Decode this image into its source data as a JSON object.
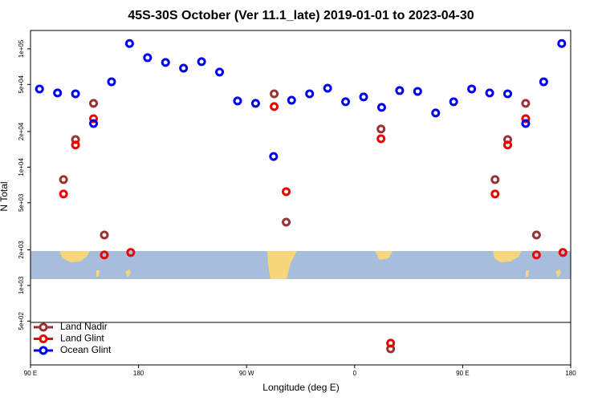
{
  "chart_data": {
    "type": "scatter",
    "title": "45S-30S October (Ver 11.1_late)   2019-01-01 to 2023-04-30",
    "x_label": "Longitude (deg E)",
    "y_label": "N Total",
    "log_y": true,
    "legend": "bottom-left",
    "xlim": [
      90,
      540
    ],
    "ylim": [
      213,
      143000
    ],
    "xticks": [
      {
        "value": 90,
        "label": "90 E"
      },
      {
        "value": 180,
        "label": "180"
      },
      {
        "value": 270,
        "label": "90 W"
      },
      {
        "value": 360,
        "label": "0"
      },
      {
        "value": 450,
        "label": "90 E"
      },
      {
        "value": 540,
        "label": "180"
      }
    ],
    "yticks": [
      {
        "value": 500,
        "label": "5e+02"
      },
      {
        "value": 1000,
        "label": "1e+03"
      },
      {
        "value": 2000,
        "label": "2e+03"
      },
      {
        "value": 5000,
        "label": "5e+03"
      },
      {
        "value": 10000,
        "label": "1e+04"
      },
      {
        "value": 20000,
        "label": "2e+04"
      },
      {
        "value": 50000,
        "label": "5e+04"
      },
      {
        "value": 100000,
        "label": "1e+05"
      }
    ],
    "series": [
      {
        "name": "Land Nadir",
        "color": "#993333",
        "x": [
          117.5,
          127.5,
          142.5,
          151.5,
          293,
          303,
          382,
          390,
          477,
          487.5,
          502.5,
          511.5
        ],
        "values": [
          7850,
          17100,
          34600,
          2670,
          41700,
          3430,
          21000,
          291,
          7850,
          17100,
          34600,
          2670
        ]
      },
      {
        "name": "Land Glint",
        "color": "#ee0000",
        "x": [
          117.5,
          127.5,
          142.5,
          151.5,
          173.5,
          293,
          303,
          382,
          390,
          477,
          487.5,
          502.5,
          511.5,
          533.5
        ],
        "values": [
          5930,
          15400,
          25700,
          1810,
          1900,
          32500,
          6210,
          17400,
          325,
          5930,
          15400,
          25700,
          1810,
          1900
        ]
      },
      {
        "name": "Ocean Glint",
        "color": "#0000ee",
        "x": [
          97.5,
          112.5,
          127.5,
          142.5,
          157.5,
          172.5,
          187.5,
          202.5,
          217.5,
          232.5,
          247.5,
          262.5,
          277.5,
          292.5,
          307.5,
          322.5,
          337.5,
          352.5,
          367.5,
          382.5,
          397.5,
          412.5,
          427.5,
          442.5,
          457.5,
          472.5,
          487.5,
          502.5,
          517.5,
          532.5
        ],
        "values": [
          45800,
          42400,
          41700,
          23400,
          52700,
          111000,
          84200,
          76700,
          68700,
          77900,
          63600,
          36300,
          34600,
          12300,
          36800,
          41700,
          46500,
          35700,
          39200,
          32000,
          44400,
          43700,
          28700,
          35700,
          45800,
          42400,
          41700,
          23400,
          52700,
          111000
        ]
      }
    ]
  }
}
